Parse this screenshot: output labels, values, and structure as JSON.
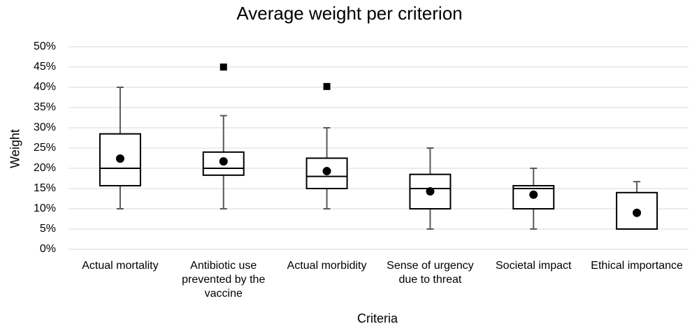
{
  "chart_data": {
    "type": "box",
    "title": "Average weight per criterion",
    "xlabel": "Criteria",
    "ylabel": "Weight",
    "ylim": [
      0,
      50
    ],
    "y_unit": "%",
    "y_ticks": [
      "0%",
      "5%",
      "10%",
      "15%",
      "20%",
      "25%",
      "30%",
      "35%",
      "40%",
      "45%",
      "50%"
    ],
    "grid": "horizontal",
    "legend": "none",
    "categories": [
      "Actual mortality",
      "Antibiotic use prevented by the vaccine",
      "Actual morbidity",
      "Sense of urgency due to threat",
      "Societal impact",
      "Ethical importance"
    ],
    "boxes": [
      {
        "min": 10,
        "q1": 15.7,
        "median": 20,
        "q3": 28.5,
        "max": 40,
        "mean": 22.4,
        "outliers": []
      },
      {
        "min": 10,
        "q1": 18.3,
        "median": 20,
        "q3": 24,
        "max": 33,
        "mean": 21.7,
        "outliers": [
          45
        ]
      },
      {
        "min": 10,
        "q1": 15,
        "median": 18,
        "q3": 22.5,
        "max": 30,
        "mean": 19.3,
        "outliers": [
          40.2
        ]
      },
      {
        "min": 5,
        "q1": 10,
        "median": 15,
        "q3": 18.5,
        "max": 25,
        "mean": 14.3,
        "outliers": []
      },
      {
        "min": 5,
        "q1": 10,
        "median": 15,
        "q3": 15.7,
        "max": 20,
        "mean": 13.5,
        "outliers": []
      },
      {
        "min": 5,
        "q1": 5,
        "median": 5,
        "q3": 14,
        "max": 16.7,
        "mean": 9,
        "outliers": []
      }
    ],
    "colors": {
      "box_stroke": "#000000",
      "whisker": "#595959",
      "grid": "#d9d9d9",
      "marker": "#000000"
    }
  }
}
